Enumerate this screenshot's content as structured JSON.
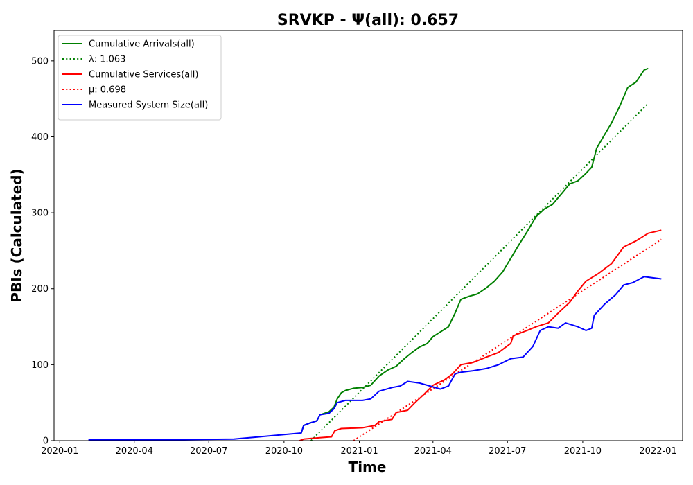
{
  "chart_data": {
    "type": "line",
    "title": "SRVKP -  Ψ(all): 0.657",
    "xlabel": "Time",
    "ylabel": "PBIs (Calculated)",
    "xlim": [
      "2019-12-25",
      "2022-01-31"
    ],
    "ylim": [
      0,
      540
    ],
    "x_ticks": [
      "2020-01",
      "2020-04",
      "2020-07",
      "2020-10",
      "2021-01",
      "2021-04",
      "2021-07",
      "2021-10",
      "2022-01"
    ],
    "y_ticks": [
      0,
      100,
      200,
      300,
      400,
      500
    ],
    "legend_position": "top-left",
    "grid": false,
    "series": [
      {
        "name": "Cumulative Arrivals(all)",
        "color": "#008000",
        "style": "solid",
        "points": [
          [
            "2020-10-22",
            10
          ],
          [
            "2020-10-25",
            20
          ],
          [
            "2020-11-01",
            23
          ],
          [
            "2020-11-10",
            26
          ],
          [
            "2020-11-14",
            34
          ],
          [
            "2020-11-25",
            38
          ],
          [
            "2020-12-01",
            44
          ],
          [
            "2020-12-05",
            55
          ],
          [
            "2020-12-10",
            63
          ],
          [
            "2020-12-15",
            66
          ],
          [
            "2020-12-25",
            69
          ],
          [
            "2021-01-05",
            70
          ],
          [
            "2021-01-15",
            73
          ],
          [
            "2021-01-25",
            85
          ],
          [
            "2021-02-05",
            93
          ],
          [
            "2021-02-15",
            98
          ],
          [
            "2021-02-25",
            108
          ],
          [
            "2021-03-05",
            115
          ],
          [
            "2021-03-15",
            123
          ],
          [
            "2021-03-25",
            128
          ],
          [
            "2021-04-01",
            137
          ],
          [
            "2021-04-10",
            143
          ],
          [
            "2021-04-20",
            150
          ],
          [
            "2021-04-28",
            168
          ],
          [
            "2021-05-05",
            186
          ],
          [
            "2021-05-15",
            190
          ],
          [
            "2021-05-25",
            193
          ],
          [
            "2021-06-05",
            201
          ],
          [
            "2021-06-15",
            210
          ],
          [
            "2021-06-25",
            222
          ],
          [
            "2021-07-05",
            240
          ],
          [
            "2021-07-15",
            258
          ],
          [
            "2021-07-25",
            275
          ],
          [
            "2021-08-05",
            295
          ],
          [
            "2021-08-15",
            305
          ],
          [
            "2021-08-25",
            311
          ],
          [
            "2021-09-05",
            325
          ],
          [
            "2021-09-15",
            338
          ],
          [
            "2021-09-25",
            342
          ],
          [
            "2021-10-05",
            352
          ],
          [
            "2021-10-12",
            360
          ],
          [
            "2021-10-18",
            385
          ],
          [
            "2021-10-25",
            398
          ],
          [
            "2021-11-05",
            418
          ],
          [
            "2021-11-15",
            440
          ],
          [
            "2021-11-25",
            465
          ],
          [
            "2021-12-05",
            472
          ],
          [
            "2021-12-15",
            488
          ],
          [
            "2021-12-20",
            490
          ]
        ]
      },
      {
        "name": "λ: 1.063",
        "color": "#008000",
        "style": "dotted",
        "points": [
          [
            "2020-11-03",
            0
          ],
          [
            "2021-12-20",
            444
          ]
        ]
      },
      {
        "name": "Cumulative Services(all)",
        "color": "#ff0000",
        "style": "solid",
        "points": [
          [
            "2020-10-20",
            0
          ],
          [
            "2020-10-25",
            2
          ],
          [
            "2020-11-15",
            4
          ],
          [
            "2020-11-28",
            5
          ],
          [
            "2020-12-02",
            13
          ],
          [
            "2020-12-10",
            16
          ],
          [
            "2021-01-05",
            17
          ],
          [
            "2021-01-20",
            20
          ],
          [
            "2021-01-25",
            25
          ],
          [
            "2021-02-10",
            28
          ],
          [
            "2021-02-15",
            37
          ],
          [
            "2021-03-01",
            40
          ],
          [
            "2021-03-10",
            50
          ],
          [
            "2021-03-20",
            60
          ],
          [
            "2021-04-01",
            73
          ],
          [
            "2021-04-15",
            80
          ],
          [
            "2021-04-25",
            88
          ],
          [
            "2021-05-05",
            100
          ],
          [
            "2021-05-20",
            103
          ],
          [
            "2021-06-05",
            110
          ],
          [
            "2021-06-20",
            116
          ],
          [
            "2021-07-05",
            128
          ],
          [
            "2021-07-08",
            138
          ],
          [
            "2021-07-25",
            145
          ],
          [
            "2021-08-05",
            150
          ],
          [
            "2021-08-20",
            155
          ],
          [
            "2021-09-01",
            168
          ],
          [
            "2021-09-15",
            182
          ],
          [
            "2021-09-25",
            197
          ],
          [
            "2021-10-05",
            210
          ],
          [
            "2021-10-20",
            220
          ],
          [
            "2021-11-05",
            233
          ],
          [
            "2021-11-20",
            255
          ],
          [
            "2021-12-05",
            263
          ],
          [
            "2021-12-20",
            273
          ],
          [
            "2022-01-05",
            277
          ]
        ]
      },
      {
        "name": "μ: 0.698",
        "color": "#ff0000",
        "style": "dotted",
        "points": [
          [
            "2020-12-25",
            0
          ],
          [
            "2022-01-05",
            265
          ]
        ]
      },
      {
        "name": "Measured System Size(all)",
        "color": "#0000ff",
        "style": "solid",
        "points": [
          [
            "2020-02-05",
            1
          ],
          [
            "2020-05-01",
            1
          ],
          [
            "2020-08-01",
            2
          ],
          [
            "2020-08-10",
            3
          ],
          [
            "2020-09-01",
            5
          ],
          [
            "2020-10-01",
            8
          ],
          [
            "2020-10-22",
            10
          ],
          [
            "2020-10-25",
            20
          ],
          [
            "2020-11-01",
            23
          ],
          [
            "2020-11-10",
            26
          ],
          [
            "2020-11-14",
            34
          ],
          [
            "2020-11-25",
            36
          ],
          [
            "2020-12-01",
            42
          ],
          [
            "2020-12-05",
            50
          ],
          [
            "2020-12-15",
            53
          ],
          [
            "2021-01-05",
            53
          ],
          [
            "2021-01-15",
            55
          ],
          [
            "2021-01-25",
            65
          ],
          [
            "2021-02-10",
            70
          ],
          [
            "2021-02-20",
            72
          ],
          [
            "2021-03-01",
            78
          ],
          [
            "2021-03-15",
            76
          ],
          [
            "2021-03-25",
            73
          ],
          [
            "2021-04-10",
            68
          ],
          [
            "2021-04-20",
            72
          ],
          [
            "2021-04-28",
            88
          ],
          [
            "2021-05-05",
            90
          ],
          [
            "2021-05-20",
            92
          ],
          [
            "2021-06-05",
            95
          ],
          [
            "2021-06-20",
            100
          ],
          [
            "2021-07-05",
            108
          ],
          [
            "2021-07-20",
            110
          ],
          [
            "2021-08-01",
            124
          ],
          [
            "2021-08-10",
            145
          ],
          [
            "2021-08-20",
            150
          ],
          [
            "2021-09-01",
            148
          ],
          [
            "2021-09-10",
            155
          ],
          [
            "2021-09-25",
            150
          ],
          [
            "2021-10-05",
            145
          ],
          [
            "2021-10-12",
            148
          ],
          [
            "2021-10-15",
            165
          ],
          [
            "2021-10-28",
            180
          ],
          [
            "2021-11-10",
            192
          ],
          [
            "2021-11-20",
            205
          ],
          [
            "2021-12-01",
            208
          ],
          [
            "2021-12-15",
            216
          ],
          [
            "2022-01-05",
            213
          ]
        ]
      }
    ]
  }
}
